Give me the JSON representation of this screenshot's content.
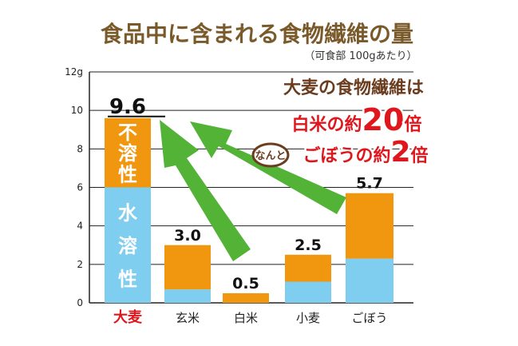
{
  "chart_data": {
    "type": "bar",
    "title": "食品中に含まれる食物繊維の量",
    "subtitle": "（可食部 100gあたり）",
    "y_unit": "g",
    "ylim": [
      0,
      12
    ],
    "yticks": [
      "0",
      "2",
      "4",
      "6",
      "8",
      "10",
      "12g"
    ],
    "grid": true,
    "categories": [
      "大麦",
      "玄米",
      "白米",
      "小麦",
      "ごぼう"
    ],
    "totals": [
      9.6,
      3.0,
      0.5,
      2.5,
      5.7
    ],
    "total_labels": [
      "9.6",
      "3.0",
      "0.5",
      "2.5",
      "5.7"
    ],
    "series": [
      {
        "name": "水溶性",
        "values": [
          6.0,
          0.7,
          0.0,
          1.1,
          2.3
        ]
      },
      {
        "name": "不溶性",
        "values": [
          3.6,
          2.3,
          0.5,
          1.4,
          3.4
        ]
      }
    ],
    "bar_text": {
      "insoluble": "不溶性",
      "soluble": "水溶性"
    },
    "annotation": {
      "line1": "大麦の食物繊維は",
      "line2_pre": "白米の約",
      "line2_num": "20",
      "line2_post": "倍",
      "badge": "なんと",
      "line3_pre": "ごぼうの約",
      "line3_num": "2",
      "line3_post": "倍"
    },
    "colors": {
      "soluble": "#7fcdef",
      "insoluble": "#f0960f",
      "title": "#7a5a2a",
      "highlight_label": "#e0161d",
      "annotation_red": "#e0161d",
      "annotation_dark": "#6b3d1f",
      "arrow": "#53b337"
    }
  }
}
